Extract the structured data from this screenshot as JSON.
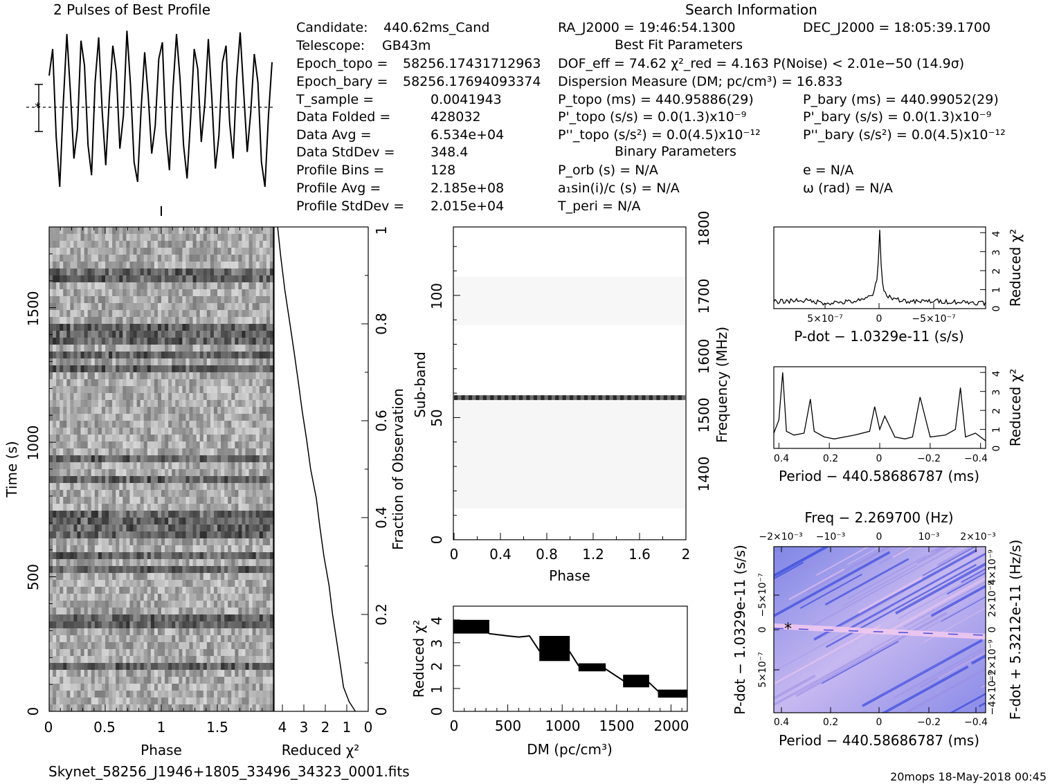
{
  "header": {
    "profile_title": "2 Pulses of Best Profile",
    "search_title": "Search Information",
    "best_fit_title": "Best Fit Parameters",
    "binary_title": "Binary Parameters"
  },
  "left_info": [
    {
      "label": "Candidate:",
      "value": "440.62ms_Cand"
    },
    {
      "label": "Telescope:",
      "value": "GB43m"
    },
    {
      "label": "Epoch_topo =",
      "value": "58256.17431712963"
    },
    {
      "label": "Epoch_bary =",
      "value": "58256.17694093374"
    },
    {
      "label": "T_sample =",
      "value": "0.0041943"
    },
    {
      "label": "Data Folded =",
      "value": "428032"
    },
    {
      "label": "Data Avg =",
      "value": "6.534e+04"
    },
    {
      "label": "Data StdDev =",
      "value": "348.4"
    },
    {
      "label": "Profile Bins =",
      "value": "128"
    },
    {
      "label": "Profile Avg =",
      "value": "2.185e+08"
    },
    {
      "label": "Profile StdDev =",
      "value": "2.015e+04"
    }
  ],
  "mid_info": {
    "ra": "RA_J2000 = 19:46:54.1300",
    "dof": "DOF_eff = 74.62  χ²_red = 4.163  P(Noise) < 2.01e−50  (14.9σ)",
    "dm": "Dispersion Measure (DM; pc/cm³) = 16.833",
    "p_topo": "P_topo (ms) =  440.95886(29)",
    "pd_topo": "P'_topo (s/s) = 0.0(1.3)x10⁻⁹",
    "pdd_topo": "P''_topo (s/s²) = 0.0(4.5)x10⁻¹²",
    "porb": "P_orb (s) = N/A",
    "a1sini": "a₁sin(i)/c (s) = N/A",
    "tperi": "T_peri = N/A"
  },
  "right_info": {
    "dec": "DEC_J2000 = 18:05:39.1700",
    "p_bary": "P_bary (ms) =  440.99052(29)",
    "pd_bary": "P'_bary (s/s) = 0.0(1.3)x10⁻⁹",
    "pdd_bary": "P''_bary (s/s²) = 0.0(4.5)x10⁻¹²",
    "e": "e = N/A",
    "omega": "ω (rad) = N/A"
  },
  "footer": {
    "filename": "Skynet_58256_J1946+1805_33496_34323_0001.fits",
    "stamp": "20mops 18-May-2018 00:45"
  },
  "chart_data": [
    {
      "type": "line",
      "name": "profile",
      "title": "2 Pulses of Best Profile",
      "x_range": [
        0,
        2
      ],
      "profile": [
        0.72,
        0.88,
        0.35,
        0.05,
        0.55,
        0.97,
        0.62,
        0.22,
        0.4,
        0.93,
        0.78,
        0.3,
        0.12,
        0.68,
        0.95,
        0.5,
        0.18,
        0.58,
        0.9,
        0.74,
        0.28,
        0.48,
        0.99,
        0.66,
        0.2,
        0.08,
        0.52,
        0.86,
        0.6,
        0.25,
        0.42,
        0.82,
        0.92,
        0.38,
        0.15,
        0.64,
        0.97,
        0.7,
        0.3,
        0.1,
        0.46,
        0.88,
        0.76,
        0.32,
        0.55,
        0.94,
        0.58,
        0.16,
        0.36,
        0.8,
        0.9,
        0.44,
        0.22,
        0.7,
        0.98,
        0.62,
        0.26,
        0.5,
        0.85,
        0.68,
        0.2,
        0.05,
        0.48,
        0.8
      ]
    },
    {
      "type": "heatmap",
      "name": "time-phase",
      "xlabel": "Phase",
      "ylabel": "Time (s)",
      "x_ticks": [
        "0",
        "0.5",
        "1",
        "1.5"
      ],
      "y_ticks": [
        "0",
        "500",
        "1000",
        "1500"
      ],
      "x_range": [
        0,
        2
      ],
      "y_range": [
        0,
        1780
      ]
    },
    {
      "type": "line",
      "name": "reduced-chi2-vs-time",
      "xlabel": "Reduced χ²",
      "ylabel": "Fraction of Observation",
      "x_ticks": [
        "4",
        "3",
        "2",
        "1",
        "0"
      ],
      "y_ticks": [
        "0",
        "0.2",
        "0.4",
        "0.6",
        "0.8",
        "1"
      ],
      "x_range": [
        4.3,
        0
      ],
      "y_range": [
        0,
        1
      ],
      "x": [
        0.6,
        0.9,
        1.1,
        1.3,
        1.45,
        1.6,
        1.8,
        2.0,
        2.2,
        2.4,
        2.6,
        2.8,
        3.0,
        3.2,
        3.4,
        3.6,
        3.8,
        4.0,
        4.16
      ],
      "y": [
        0.0,
        0.02,
        0.05,
        0.1,
        0.15,
        0.2,
        0.26,
        0.32,
        0.38,
        0.44,
        0.5,
        0.56,
        0.62,
        0.68,
        0.74,
        0.8,
        0.87,
        0.94,
        1.0
      ]
    },
    {
      "type": "heatmap",
      "name": "subband-phase",
      "xlabel": "Phase",
      "ylabel": "Sub-band",
      "y2label": "Frequency (MHz)",
      "x_ticks": [
        "0",
        "0.4",
        "0.8",
        "1.2",
        "1.6",
        "2"
      ],
      "y_ticks": [
        "0",
        "50",
        "100"
      ],
      "y2_ticks": [
        "1400",
        "1500",
        "1600",
        "1700",
        "1800"
      ],
      "x_range": [
        0,
        2
      ],
      "y_range": [
        0,
        128
      ],
      "bright_subband": 58
    },
    {
      "type": "line",
      "name": "reduced-chi2-vs-dm",
      "xlabel": "DM (pc/cm³)",
      "ylabel": "Reduced χ²",
      "x_ticks": [
        "0",
        "500",
        "1000",
        "1500",
        "2000"
      ],
      "y_ticks": [
        "0",
        "1",
        "2",
        "3",
        "4"
      ],
      "x_range": [
        0,
        2150
      ],
      "y_range": [
        0,
        4.6
      ],
      "x": [
        0,
        100,
        150,
        250,
        330,
        500,
        600,
        700,
        790,
        900,
        1000,
        1070,
        1150,
        1300,
        1400,
        1560,
        1650,
        1800,
        1900,
        2000,
        2150
      ],
      "y": [
        3.8,
        3.95,
        3.85,
        3.7,
        3.4,
        3.3,
        3.25,
        3.3,
        2.65,
        2.6,
        2.55,
        2.6,
        2.0,
        1.95,
        1.85,
        1.35,
        1.3,
        1.25,
        0.8,
        0.85,
        0.8
      ]
    },
    {
      "type": "line",
      "name": "reduced-chi2-vs-pdot",
      "xlabel": "P-dot − 1.0329e-11 (s/s)",
      "ylabel": "Reduced χ²",
      "x_ticks": [
        "5×10⁻⁷",
        "0",
        "−5×10⁻⁷"
      ],
      "y_ticks": [
        "0",
        "1",
        "2",
        "3",
        "4"
      ],
      "x_range": [
        1e-06,
        -1e-06
      ],
      "y_range": [
        0,
        4.3
      ],
      "x": [
        1e-06,
        7.5e-07,
        5e-07,
        3e-07,
        1.5e-07,
        6e-08,
        2e-08,
        0,
        -2e-08,
        -6e-08,
        -1.5e-07,
        -3e-07,
        -5e-07,
        -7.5e-07,
        -1e-06
      ],
      "y": [
        0.35,
        0.45,
        0.3,
        0.35,
        0.45,
        0.8,
        1.6,
        4.15,
        1.4,
        0.7,
        0.5,
        0.35,
        0.4,
        0.35,
        0.3
      ]
    },
    {
      "type": "line",
      "name": "reduced-chi2-vs-period",
      "xlabel": "Period − 440.58686787 (ms)",
      "ylabel": "Reduced χ²",
      "x_ticks": [
        "0.4",
        "0.2",
        "0",
        "−0.2",
        "−0.4"
      ],
      "y_ticks": [
        "0",
        "1",
        "2",
        "3",
        "4"
      ],
      "x_range": [
        0.42,
        -0.42
      ],
      "y_range": [
        0,
        4.3
      ],
      "x": [
        0.42,
        0.4,
        0.385,
        0.37,
        0.34,
        0.3,
        0.275,
        0.26,
        0.22,
        0.18,
        0.1,
        0.04,
        0.02,
        0.0,
        -0.02,
        -0.06,
        -0.1,
        -0.13,
        -0.16,
        -0.2,
        -0.26,
        -0.3,
        -0.32,
        -0.34,
        -0.38,
        -0.42
      ],
      "y": [
        0.8,
        1.5,
        4.0,
        0.9,
        0.7,
        0.8,
        2.6,
        0.9,
        0.6,
        0.5,
        0.7,
        0.9,
        2.2,
        1.0,
        1.7,
        0.6,
        0.5,
        0.6,
        2.7,
        0.6,
        0.7,
        1.0,
        3.2,
        0.6,
        0.8,
        0.4
      ]
    },
    {
      "type": "heatmap",
      "name": "period-pdot",
      "title": "Freq − 2.269700 (Hz)",
      "xlabel": "Period − 440.58686787 (ms)",
      "ylabel": "P-dot − 1.0329e-11 (s/s)",
      "y2label": "F-dot + 5.3212e-11 (Hz/s)",
      "x_ticks": [
        "0.4",
        "0.2",
        "0",
        "−0.2",
        "−0.4"
      ],
      "x2_ticks": [
        "−2×10⁻³",
        "−10⁻³",
        "0",
        "10⁻³",
        "2×10⁻³"
      ],
      "y_ticks": [
        "−5×10⁻⁷",
        "0",
        "5×10⁻⁷"
      ],
      "y2_ticks": [
        "4×10⁻⁹",
        "2×10⁻⁹",
        "0",
        "−2×10⁻⁹",
        "−4×10⁻⁹"
      ],
      "colors": {
        "high": "#1a2fd8",
        "low": "#f0c8ee",
        "mid": "#9a8ee6"
      }
    }
  ]
}
